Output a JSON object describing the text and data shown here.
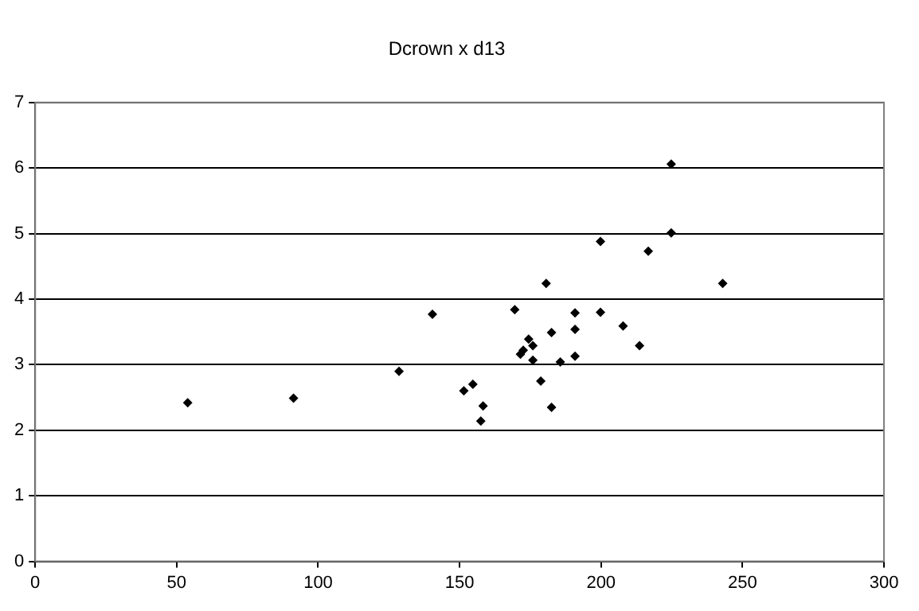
{
  "chart_data": {
    "type": "scatter",
    "title": "Dcrown x d13",
    "x": [
      53.9,
      91.3,
      128.6,
      140.4,
      151.5,
      154.7,
      224.8,
      224.8,
      199.8,
      216.7,
      180.6,
      243.0,
      169.5,
      190.8,
      199.8,
      207.8,
      182.5,
      190.8,
      174.4,
      175.9,
      213.6,
      172.5,
      171.5,
      175.9,
      190.8,
      185.6,
      178.7,
      158.3,
      182.5,
      157.5
    ],
    "values": [
      2.42,
      2.49,
      2.9,
      3.77,
      2.6,
      2.7,
      6.06,
      5.01,
      4.88,
      4.73,
      4.24,
      4.24,
      3.84,
      3.79,
      3.8,
      3.59,
      3.49,
      3.54,
      3.39,
      3.29,
      3.29,
      3.22,
      3.16,
      3.07,
      3.13,
      3.04,
      2.75,
      2.37,
      2.35,
      2.14
    ],
    "color": "#000000",
    "marker": "diamond",
    "xlim": [
      0,
      300
    ],
    "xticks": [
      0,
      50,
      100,
      150,
      200,
      250,
      300
    ],
    "ylim": [
      0,
      7
    ],
    "yticks": [
      0,
      1,
      2,
      3,
      4,
      5,
      6,
      7
    ],
    "grid": "y",
    "legend": false
  }
}
